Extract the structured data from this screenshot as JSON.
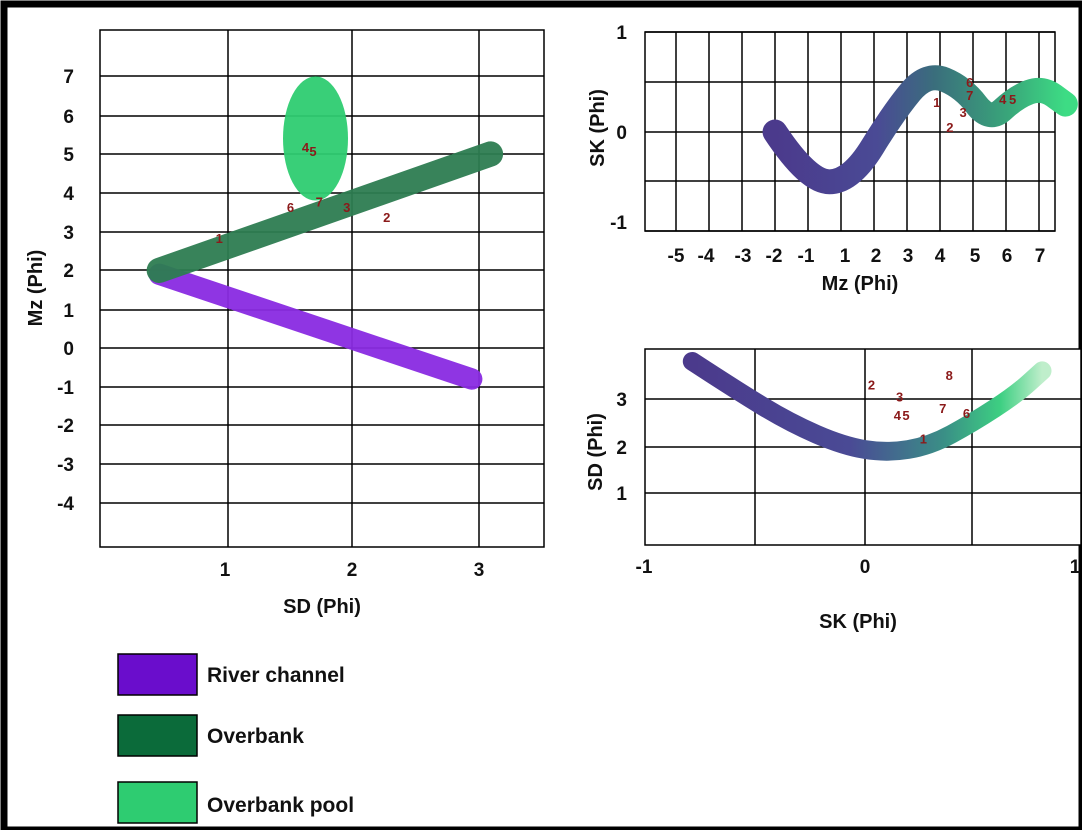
{
  "colors": {
    "river_channel": "#8a2be2",
    "overbank": "#2e7d52",
    "overbank_pool": "#2ecc71",
    "gradient_start": "#4b3a8c",
    "gradient_end": "#3ddc84",
    "point_label": "#8b1a1a"
  },
  "legend": [
    {
      "label": "River channel",
      "color": "#6a0dcc"
    },
    {
      "label": "Overbank",
      "color": "#0b6b3a"
    },
    {
      "label": "Overbank pool",
      "color": "#2ecc71"
    }
  ],
  "chart_data": [
    {
      "type": "scatter",
      "xlabel": "SD (Phi)",
      "ylabel": "Mz (Phi)",
      "xlim": [
        0,
        3.5
      ],
      "ylim": [
        -5,
        8
      ],
      "xticks": [
        1,
        2,
        3
      ],
      "yticks": [
        7,
        6,
        5,
        4,
        3,
        2,
        1,
        0,
        -1,
        -2,
        -3,
        -4
      ],
      "grid": true,
      "regions": [
        {
          "name": "River channel",
          "shape": "band",
          "from": [
            0.45,
            1.9
          ],
          "to": [
            2.95,
            -0.8
          ],
          "width": 0.55,
          "color": "#8a2be2"
        },
        {
          "name": "Overbank",
          "shape": "band",
          "from": [
            0.45,
            2.0
          ],
          "to": [
            3.1,
            5.0
          ],
          "width": 0.65,
          "color": "#2e7d52"
        },
        {
          "name": "Overbank pool",
          "shape": "blob",
          "center": [
            1.7,
            5.4
          ],
          "rx": 0.26,
          "ry": 1.6,
          "color": "#2ecc71"
        }
      ],
      "points": [
        {
          "label": "1",
          "x": 0.93,
          "y": 2.7
        },
        {
          "label": "2",
          "x": 2.27,
          "y": 3.25
        },
        {
          "label": "3",
          "x": 1.95,
          "y": 3.5
        },
        {
          "label": "4",
          "x": 1.62,
          "y": 5.05
        },
        {
          "label": "5",
          "x": 1.68,
          "y": 4.95
        },
        {
          "label": "6",
          "x": 1.5,
          "y": 3.5
        },
        {
          "label": "7",
          "x": 1.73,
          "y": 3.65
        }
      ]
    },
    {
      "type": "scatter",
      "xlabel": "Mz (Phi)",
      "ylabel": "SK (Phi)",
      "xlim": [
        -6,
        8
      ],
      "ylim": [
        -1,
        1
      ],
      "xticks": [
        -5,
        -4,
        -3,
        -2,
        -1,
        1,
        2,
        3,
        4,
        5,
        6,
        7
      ],
      "yticks": [
        1,
        0,
        -1
      ],
      "grid": true,
      "regions": [
        {
          "name": "trend",
          "shape": "curve",
          "path": [
            [
              -2.0,
              0.0
            ],
            [
              -1.0,
              -0.5
            ],
            [
              0.3,
              -0.5
            ],
            [
              1.6,
              0.2
            ],
            [
              2.6,
              0.6
            ],
            [
              3.7,
              0.45
            ],
            [
              4.5,
              0.1
            ],
            [
              5.3,
              0.35
            ],
            [
              6.1,
              0.45
            ],
            [
              6.8,
              0.28
            ]
          ],
          "width": 0.25
        }
      ],
      "points": [
        {
          "label": "1",
          "x": 2.9,
          "y": 0.25
        },
        {
          "label": "2",
          "x": 3.3,
          "y": 0.0
        },
        {
          "label": "3",
          "x": 3.7,
          "y": 0.15
        },
        {
          "label": "4",
          "x": 4.9,
          "y": 0.28
        },
        {
          "label": "5",
          "x": 5.2,
          "y": 0.28
        },
        {
          "label": "6",
          "x": 3.9,
          "y": 0.45
        },
        {
          "label": "7",
          "x": 3.9,
          "y": 0.32
        }
      ]
    },
    {
      "type": "scatter",
      "xlabel": "SK (Phi)",
      "ylabel": "SD (Phi)",
      "xlim": [
        -1,
        1
      ],
      "ylim": [
        -0.2,
        4
      ],
      "xticks": [
        -1,
        0,
        1
      ],
      "yticks": [
        3,
        2,
        1
      ],
      "grid": true,
      "regions": [
        {
          "name": "trend",
          "shape": "curve",
          "path": [
            [
              -0.8,
              2.8
            ],
            [
              -0.6,
              2.2
            ],
            [
              -0.35,
              1.5
            ],
            [
              -0.1,
              1.0
            ],
            [
              0.1,
              0.85
            ],
            [
              0.3,
              1.0
            ],
            [
              0.5,
              1.5
            ],
            [
              0.7,
              2.1
            ],
            [
              0.82,
              2.6
            ]
          ],
          "width": 0.4
        }
      ],
      "points": [
        {
          "label": "1",
          "x": 0.27,
          "y": 1.05
        },
        {
          "label": "2",
          "x": 0.03,
          "y": 2.2
        },
        {
          "label": "3",
          "x": 0.16,
          "y": 1.95
        },
        {
          "label": "4",
          "x": 0.15,
          "y": 1.55
        },
        {
          "label": "5",
          "x": 0.19,
          "y": 1.55
        },
        {
          "label": "6",
          "x": 0.47,
          "y": 1.6
        },
        {
          "label": "7",
          "x": 0.36,
          "y": 1.7
        },
        {
          "label": "8",
          "x": 0.39,
          "y": 2.4
        }
      ]
    }
  ]
}
